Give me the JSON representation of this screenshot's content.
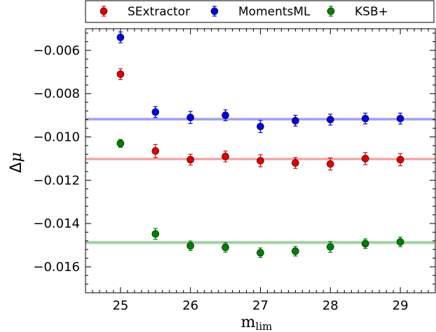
{
  "chart_data": {
    "type": "scatter",
    "xlabel_main": "m",
    "xlabel_sub": "lim",
    "ylabel_main": "Δ",
    "ylabel_sym": "μ",
    "xlim": [
      24.5,
      29.5
    ],
    "ylim": [
      -0.0172,
      -0.005
    ],
    "x_ticks": [
      25,
      26,
      27,
      28,
      29
    ],
    "x_tick_labels": [
      "25",
      "26",
      "27",
      "28",
      "29"
    ],
    "y_ticks": [
      -0.006,
      -0.008,
      -0.01,
      -0.012,
      -0.014,
      -0.016
    ],
    "y_tick_labels": [
      "−0.006",
      "−0.008",
      "−0.010",
      "−0.012",
      "−0.014",
      "−0.016"
    ],
    "grid": false,
    "legend_position": "top",
    "x": [
      25,
      25.5,
      26,
      26.5,
      27,
      27.5,
      28,
      28.5,
      29
    ],
    "series": [
      {
        "name": "SExtractor",
        "color": "#e00000",
        "values": [
          -0.0071,
          -0.01065,
          -0.01105,
          -0.0109,
          -0.0111,
          -0.0112,
          -0.01125,
          -0.011,
          -0.01105
        ],
        "errors": [
          0.00025,
          0.0003,
          0.00025,
          0.00025,
          0.00028,
          0.00025,
          0.00028,
          0.00028,
          0.00028
        ],
        "reference_line": -0.01102,
        "reference_band": [
          -0.01108,
          -0.01096
        ]
      },
      {
        "name": "MomentsML",
        "color": "#0000e0",
        "values": [
          -0.0054,
          -0.00885,
          -0.0091,
          -0.009,
          -0.00952,
          -0.00925,
          -0.0092,
          -0.00915,
          -0.00915
        ],
        "errors": [
          0.00025,
          0.00025,
          0.00028,
          0.00025,
          0.00028,
          0.00025,
          0.00025,
          0.00025,
          0.00025
        ],
        "reference_line": -0.00918,
        "reference_band": [
          -0.00925,
          -0.00911
        ]
      },
      {
        "name": "KSB+",
        "color": "#008000",
        "values": [
          -0.0103,
          -0.01448,
          -0.01503,
          -0.0151,
          -0.01535,
          -0.01528,
          -0.01508,
          -0.01493,
          -0.01485
        ],
        "errors": [
          0.00018,
          0.00025,
          0.00022,
          0.00022,
          0.00022,
          0.00022,
          0.00025,
          0.00022,
          0.00022
        ],
        "reference_line": -0.01488,
        "reference_band": [
          -0.01496,
          -0.0148
        ]
      }
    ]
  }
}
